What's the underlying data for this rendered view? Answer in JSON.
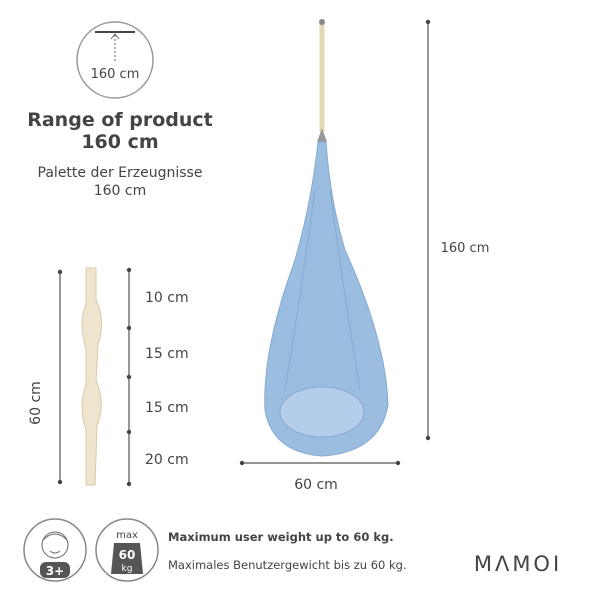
{
  "range_icon": {
    "label": "160 cm"
  },
  "range": {
    "title": "Range of product",
    "value": "160 cm",
    "subtitle_de": "Palette der Erzeugnisse",
    "value_de": "160 cm"
  },
  "strap": {
    "length": "60 cm",
    "segments": [
      "10 cm",
      "15 cm",
      "15 cm",
      "20 cm"
    ]
  },
  "hammock": {
    "height": "160 cm",
    "width": "60 cm"
  },
  "badges": {
    "age": "3+",
    "weight_top": "max",
    "weight_value": "60",
    "weight_unit": "kg"
  },
  "weight": {
    "en": "Maximum user weight up to 60 kg.",
    "de": "Maximales Benutzergewicht bis zu 60 kg."
  },
  "brand": "MΛMOI"
}
